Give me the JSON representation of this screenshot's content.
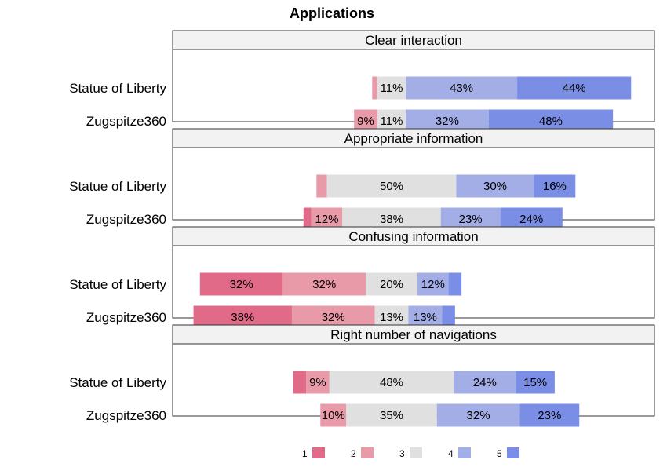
{
  "chart_data": {
    "type": "bar",
    "subtype": "diverging-stacked-likert",
    "title": "Applications",
    "levels": [
      "1",
      "2",
      "3",
      "4",
      "5"
    ],
    "colors": [
      "#e06a87",
      "#e89aa9",
      "#e0e0e0",
      "#a3aee6",
      "#7a8ee6"
    ],
    "legend_position": "bottom",
    "categories": [
      "Statue of Liberty",
      "Zugspitze360"
    ],
    "panels": [
      {
        "label": "Clear interaction",
        "rows": [
          {
            "category": "Statue of Liberty",
            "values": [
              0,
              2,
              11,
              43,
              44
            ],
            "labels": [
              "",
              "",
              "11%",
              "43%",
              "44%"
            ]
          },
          {
            "category": "Zugspitze360",
            "values": [
              0,
              9,
              11,
              32,
              48
            ],
            "labels": [
              "",
              "9%",
              "11%",
              "32%",
              "48%"
            ]
          }
        ]
      },
      {
        "label": "Appropriate information",
        "rows": [
          {
            "category": "Statue of Liberty",
            "values": [
              0,
              4,
              50,
              30,
              16
            ],
            "labels": [
              "",
              "",
              "50%",
              "30%",
              "16%"
            ]
          },
          {
            "category": "Zugspitze360",
            "values": [
              3,
              12,
              38,
              23,
              24
            ],
            "labels": [
              "",
              "12%",
              "38%",
              "23%",
              "24%"
            ]
          }
        ]
      },
      {
        "label": "Confusing information",
        "rows": [
          {
            "category": "Statue of Liberty",
            "values": [
              32,
              32,
              20,
              12,
              5
            ],
            "labels": [
              "32%",
              "32%",
              "20%",
              "12%",
              ""
            ]
          },
          {
            "category": "Zugspitze360",
            "values": [
              38,
              32,
              13,
              13,
              5
            ],
            "labels": [
              "38%",
              "32%",
              "13%",
              "13%",
              ""
            ]
          }
        ]
      },
      {
        "label": "Right number of navigations",
        "rows": [
          {
            "category": "Statue of Liberty",
            "values": [
              5,
              9,
              48,
              24,
              15
            ],
            "labels": [
              "",
              "9%",
              "48%",
              "24%",
              "15%"
            ]
          },
          {
            "category": "Zugspitze360",
            "values": [
              0,
              10,
              35,
              32,
              23
            ],
            "labels": [
              "",
              "10%",
              "35%",
              "32%",
              "23%"
            ]
          }
        ]
      }
    ]
  }
}
